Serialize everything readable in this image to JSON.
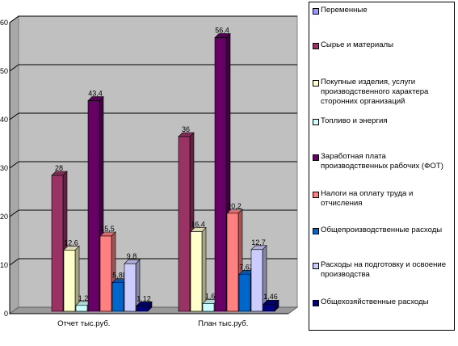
{
  "chart_data": {
    "type": "bar",
    "title": "",
    "xlabel": "",
    "ylabel": "",
    "categories": [
      "Отчет тыс.руб.",
      "План тыс.руб."
    ],
    "ylim": [
      0,
      60
    ],
    "yticks": [
      0,
      10,
      20,
      30,
      40,
      50,
      60
    ],
    "grid": true,
    "legend_position": "right",
    "series": [
      {
        "name": "Переменные",
        "color": "#9999FF",
        "values": [
          0,
          0
        ],
        "labels": [
          "",
          ""
        ]
      },
      {
        "name": "Сырье и материалы",
        "color": "#993366",
        "values": [
          28,
          36
        ],
        "labels": [
          "28",
          "36"
        ]
      },
      {
        "name": "Покупные изделия, услуги производственного характера сторонних организаций",
        "color": "#FFFFCC",
        "values": [
          12.6,
          16.4
        ],
        "labels": [
          "12,6",
          "16,4"
        ]
      },
      {
        "name": "Топливо и энергия",
        "color": "#CCFFFF",
        "values": [
          1.2,
          1.6
        ],
        "labels": [
          "1,2",
          "1,6"
        ]
      },
      {
        "name": "Заработная плата производственных рабочих (ФОТ)",
        "color": "#660066",
        "values": [
          43.4,
          56.4
        ],
        "labels": [
          "43,4",
          "56,4"
        ]
      },
      {
        "name": "Налоги на оплату труда и отчисления",
        "color": "#FF8080",
        "values": [
          15.5,
          20.2
        ],
        "labels": [
          "15,5",
          "20,2"
        ]
      },
      {
        "name": "Общепроизводственные расходы",
        "color": "#0066CC",
        "values": [
          5.88,
          7.62
        ],
        "labels": [
          "5,88",
          "7,62"
        ]
      },
      {
        "name": "Расходы на подготовку и освоение производства",
        "color": "#CCCCFF",
        "values": [
          9.8,
          12.7
        ],
        "labels": [
          "9,8",
          "12,7"
        ]
      },
      {
        "name": "Общехозяйственные расходы",
        "color": "#000080",
        "values": [
          1.12,
          1.46
        ],
        "labels": [
          "1,12",
          "1,46"
        ]
      }
    ]
  }
}
